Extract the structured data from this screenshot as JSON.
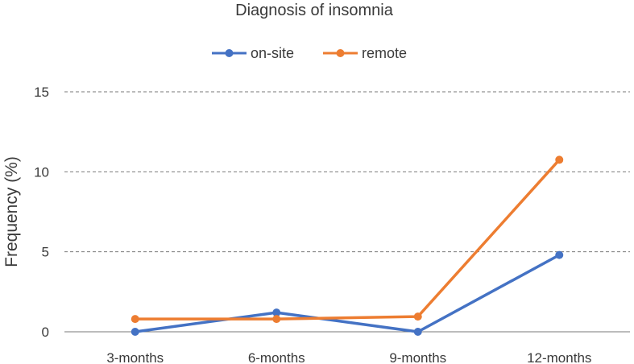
{
  "chart_data": {
    "type": "line",
    "title": "Diagnosis of insomnia",
    "xlabel": "",
    "ylabel": "Frequency (%)",
    "categories": [
      "3-months",
      "6-months",
      "9-months",
      "12-months"
    ],
    "ylim": [
      0,
      15
    ],
    "yticks": [
      "0",
      "5",
      "10",
      "15"
    ],
    "grid": true,
    "legend_position": "top-center",
    "series": [
      {
        "name": "on-site",
        "color": "#4472c4",
        "values": [
          0.0,
          1.2,
          0.0,
          4.8
        ]
      },
      {
        "name": "remote",
        "color": "#ed7d31",
        "values": [
          0.8,
          0.8,
          0.95,
          10.75
        ]
      }
    ]
  }
}
